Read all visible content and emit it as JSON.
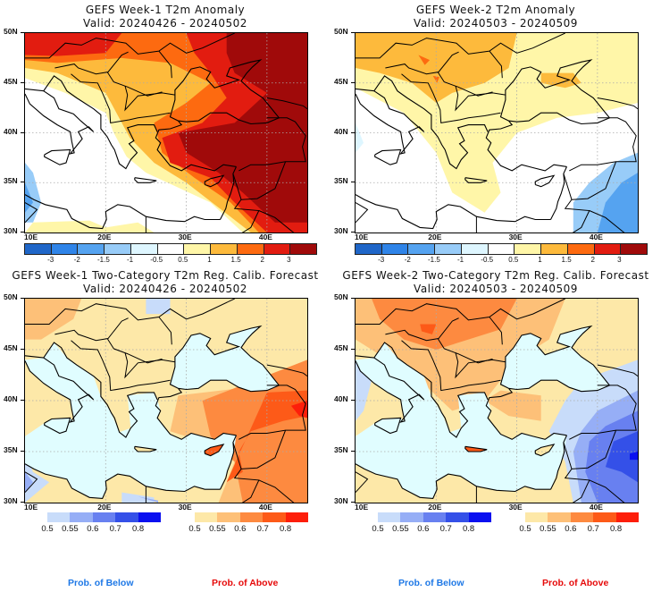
{
  "panels": [
    {
      "id": "week1-anomaly",
      "title": "GEFS Week-1 T2m Anomaly",
      "valid": "Valid: 20240426 - 20240502",
      "type": "anomaly"
    },
    {
      "id": "week2-anomaly",
      "title": "GEFS Week-2 T2m Anomaly",
      "valid": "Valid: 20240503 - 20240509",
      "type": "anomaly"
    },
    {
      "id": "week1-prob",
      "title": "GEFS Week-1 Two-Category T2m Reg. Calib. Forecast",
      "valid": "Valid: 20240426 - 20240502",
      "type": "probability"
    },
    {
      "id": "week2-prob",
      "title": "GEFS Week-2 Two-Category T2m Reg. Calib. Forecast",
      "valid": "Valid: 20240503 - 20240509",
      "type": "probability"
    }
  ],
  "axes": {
    "lat_labels": [
      "50N",
      "45N",
      "40N",
      "35N",
      "30N"
    ],
    "lon_labels": [
      "10E",
      "20E",
      "30E",
      "40E"
    ],
    "lat_range": [
      30,
      50
    ],
    "lon_range": [
      10,
      45
    ]
  },
  "anomaly_colorbar": {
    "labels": [
      "-3",
      "-2",
      "-1.5",
      "-1",
      "-0.5",
      "0.5",
      "1",
      "1.5",
      "2",
      "3"
    ],
    "colors": [
      "#1f66c8",
      "#2f84e8",
      "#55a3f0",
      "#98ccf8",
      "#def6ff",
      "#ffffff",
      "#fff6a8",
      "#fdba3c",
      "#fd6a10",
      "#e21c10",
      "#a00a0a"
    ]
  },
  "prob_below_colorbar": {
    "labels": [
      "0.5",
      "0.55",
      "0.6",
      "0.7",
      "0.8"
    ],
    "colors": [
      "#c8dcfa",
      "#96aef6",
      "#6880f0",
      "#3450e8",
      "#0a10f0"
    ]
  },
  "prob_above_colorbar": {
    "labels": [
      "0.5",
      "0.55",
      "0.6",
      "0.7",
      "0.8"
    ],
    "colors": [
      "#fde8a8",
      "#fdc078",
      "#fd8a40",
      "#fd5a18",
      "#fd1e0a"
    ]
  },
  "footer": {
    "below_label": "Prob. of Below",
    "above_label": "Prob. of Above",
    "below_color": "#1e78e6",
    "above_color": "#e60a0a"
  },
  "map_colors": {
    "sea_prob": "#e0fdff",
    "coast": "#000000",
    "grid": "#aaaaaa"
  }
}
